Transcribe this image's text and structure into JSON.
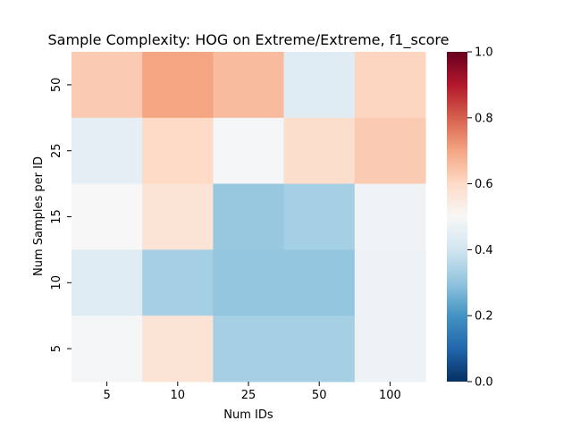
{
  "chart_data": {
    "type": "heatmap",
    "title": "Sample Complexity: HOG on Extreme/Extreme, f1_score",
    "xlabel": "Num IDs",
    "ylabel": "Num Samples per ID",
    "x_categories": [
      "5",
      "10",
      "25",
      "50",
      "100"
    ],
    "y_categories": [
      "50",
      "25",
      "15",
      "10",
      "5"
    ],
    "values": [
      [
        0.63,
        0.7,
        0.66,
        0.44,
        0.61
      ],
      [
        0.45,
        0.6,
        0.49,
        0.59,
        0.63
      ],
      [
        0.5,
        0.57,
        0.31,
        0.33,
        0.48
      ],
      [
        0.44,
        0.33,
        0.3,
        0.3,
        0.47
      ],
      [
        0.49,
        0.57,
        0.33,
        0.33,
        0.47
      ]
    ],
    "colorbar": {
      "vmin": 0.0,
      "vmax": 1.0,
      "ticks": [
        "0.0",
        "0.2",
        "0.4",
        "0.6",
        "0.8",
        "1.0"
      ],
      "colormap": "RdBu_r"
    },
    "grid": false
  }
}
